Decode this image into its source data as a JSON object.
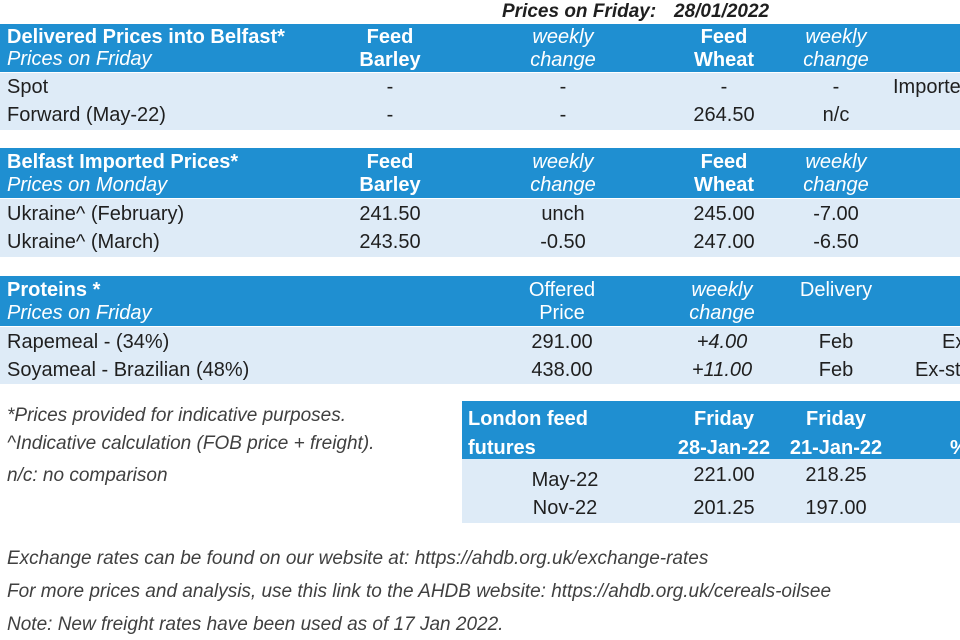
{
  "top": {
    "label": "Prices on Friday:",
    "date": "28/01/2022"
  },
  "delivered": {
    "title": "Delivered Prices into Belfast*",
    "subtitle": "Prices on Friday",
    "col1": [
      "Feed",
      "Barley"
    ],
    "col2": [
      "weekly",
      "change"
    ],
    "col3": [
      "Feed",
      "Wheat"
    ],
    "col4": [
      "weekly",
      "change"
    ],
    "rows": [
      {
        "label": "Spot",
        "barley": "-",
        "barley_change": "-",
        "wheat": "-",
        "wheat_change": "-",
        "extra": "Importe"
      },
      {
        "label": "Forward (May-22)",
        "barley": "-",
        "barley_change": "-",
        "wheat": "264.50",
        "wheat_change": "n/c"
      }
    ]
  },
  "imported": {
    "title": "Belfast Imported Prices*",
    "subtitle": "Prices on Monday",
    "col1": [
      "Feed",
      "Barley"
    ],
    "col2": [
      "weekly",
      "change"
    ],
    "col3": [
      "Feed",
      "Wheat"
    ],
    "col4": [
      "weekly",
      "change"
    ],
    "rows": [
      {
        "label": "Ukraine^ (February)",
        "barley": "241.50",
        "barley_change": "unch",
        "wheat": "245.00",
        "wheat_change": "-7.00"
      },
      {
        "label": "Ukraine^ (March)",
        "barley": "243.50",
        "barley_change": "-0.50",
        "wheat": "247.00",
        "wheat_change": "-6.50"
      }
    ]
  },
  "proteins": {
    "title": "Proteins *",
    "subtitle": "Prices on Friday",
    "col1": [
      "Offered",
      "Price"
    ],
    "col2": [
      "weekly",
      "change"
    ],
    "col3": "Delivery",
    "rows": [
      {
        "label": "Rapemeal - (34%)",
        "price": "291.00",
        "change": "+4.00",
        "delivery": "Feb",
        "extra": "Ex"
      },
      {
        "label": "Soyameal - Brazilian (48%)",
        "price": "438.00",
        "change": "+11.00",
        "delivery": "Feb",
        "extra": "Ex-st"
      }
    ]
  },
  "notes": [
    "*Prices provided for indicative purposes.",
    "^Indicative calculation (FOB price + freight).",
    "n/c: no comparison"
  ],
  "futures": {
    "title": [
      "London feed",
      "futures"
    ],
    "col1": [
      "Friday",
      "28-Jan-22"
    ],
    "col2": [
      "Friday",
      "21-Jan-22"
    ],
    "col3": "%",
    "rows": [
      {
        "label": "May-22",
        "friday1": "221.00",
        "friday2": "218.25"
      },
      {
        "label": "Nov-22",
        "friday1": "201.25",
        "friday2": "197.00"
      }
    ]
  },
  "footer": [
    "Exchange rates can be found on our website at: https://ahdb.org.uk/exchange-rates",
    "For more prices and analysis, use this link to the AHDB website: https://ahdb.org.uk/cereals-oilsee",
    "Note: New freight rates have been used as of 17 Jan 2022."
  ],
  "colors": {
    "header_blue": "#1f8fd1",
    "band_blue": "#deebf7"
  }
}
